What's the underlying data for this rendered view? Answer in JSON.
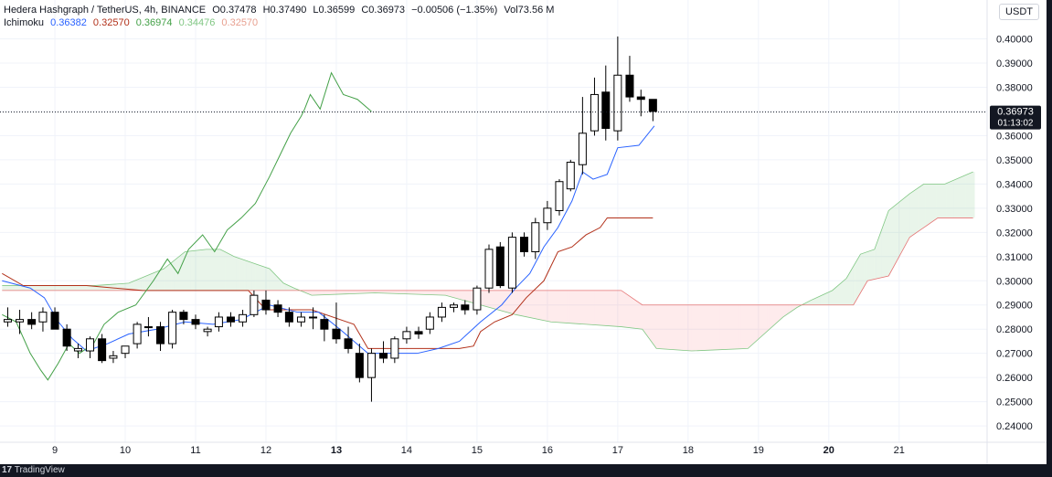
{
  "header": {
    "title": "Hedera Hashgraph / TetherUS, 4h, BINANCE",
    "open_label": "O",
    "open": "0.37478",
    "high_label": "H",
    "high": "0.37490",
    "low_label": "L",
    "low": "0.36599",
    "close_label": "C",
    "close": "0.36973",
    "change": "−0.00506 (−1.35%)",
    "volume_label": "Vol",
    "volume": "73.56 M"
  },
  "indicator": {
    "name": "Ichimoku",
    "values": [
      "0.36382",
      "0.32570",
      "0.36974",
      "0.34476",
      "0.32570"
    ]
  },
  "unit": "USDT",
  "price_tag": {
    "price": "0.36973",
    "countdown": "01:13:02"
  },
  "footer": {
    "brand": "TradingView",
    "logo": "17"
  },
  "colors": {
    "conversion": "#2962ff",
    "base": "#b2311a",
    "lagging": "#43a047",
    "lead_a": "#81c784",
    "lead_b": "#e57373",
    "cloud_bull": "rgba(76,175,80,0.12)",
    "cloud_bear": "rgba(242,54,69,0.10)",
    "candle_up": "#ffffff",
    "candle_down": "#000000"
  },
  "chart_data": {
    "type": "candlestick",
    "y_ticks": [
      "0.40000",
      "0.39000",
      "0.38000",
      "0.37000",
      "0.36000",
      "0.35000",
      "0.34000",
      "0.33000",
      "0.32000",
      "0.31000",
      "0.30000",
      "0.29000",
      "0.28000",
      "0.27000",
      "0.26000",
      "0.25000",
      "0.24000"
    ],
    "x_ticks": [
      {
        "label": "9",
        "x": 8.45,
        "bold": false
      },
      {
        "label": "10",
        "x": 9.45,
        "bold": false
      },
      {
        "label": "11",
        "x": 10.45,
        "bold": false
      },
      {
        "label": "12",
        "x": 11.45,
        "bold": false
      },
      {
        "label": "13",
        "x": 12.45,
        "bold": true
      },
      {
        "label": "14",
        "x": 13.45,
        "bold": false
      },
      {
        "label": "15",
        "x": 14.45,
        "bold": false
      },
      {
        "label": "16",
        "x": 15.45,
        "bold": false
      },
      {
        "label": "17",
        "x": 16.45,
        "bold": false
      },
      {
        "label": "18",
        "x": 17.45,
        "bold": false
      },
      {
        "label": "19",
        "x": 18.45,
        "bold": false
      },
      {
        "label": "20",
        "x": 19.45,
        "bold": true
      },
      {
        "label": "21",
        "x": 20.45,
        "bold": false
      }
    ],
    "ylim": [
      0.2355,
      0.4055
    ],
    "xlim": [
      7.67,
      21.7
    ],
    "candles": [
      {
        "x": 7.78,
        "o": 0.283,
        "h": 0.289,
        "l": 0.281,
        "c": 0.284
      },
      {
        "x": 7.95,
        "o": 0.283,
        "h": 0.288,
        "l": 0.278,
        "c": 0.284
      },
      {
        "x": 8.12,
        "o": 0.284,
        "h": 0.287,
        "l": 0.28,
        "c": 0.282
      },
      {
        "x": 8.28,
        "o": 0.283,
        "h": 0.289,
        "l": 0.279,
        "c": 0.287
      },
      {
        "x": 8.45,
        "o": 0.287,
        "h": 0.289,
        "l": 0.28,
        "c": 0.28
      },
      {
        "x": 8.62,
        "o": 0.28,
        "h": 0.282,
        "l": 0.271,
        "c": 0.273
      },
      {
        "x": 8.78,
        "o": 0.271,
        "h": 0.274,
        "l": 0.268,
        "c": 0.272
      },
      {
        "x": 8.95,
        "o": 0.271,
        "h": 0.277,
        "l": 0.268,
        "c": 0.276
      },
      {
        "x": 9.12,
        "o": 0.276,
        "h": 0.278,
        "l": 0.266,
        "c": 0.267
      },
      {
        "x": 9.28,
        "o": 0.268,
        "h": 0.271,
        "l": 0.266,
        "c": 0.269
      },
      {
        "x": 9.45,
        "o": 0.27,
        "h": 0.273,
        "l": 0.268,
        "c": 0.273
      },
      {
        "x": 9.62,
        "o": 0.274,
        "h": 0.283,
        "l": 0.272,
        "c": 0.282
      },
      {
        "x": 9.78,
        "o": 0.281,
        "h": 0.285,
        "l": 0.277,
        "c": 0.281
      },
      {
        "x": 9.95,
        "o": 0.281,
        "h": 0.283,
        "l": 0.271,
        "c": 0.274
      },
      {
        "x": 10.12,
        "o": 0.274,
        "h": 0.288,
        "l": 0.272,
        "c": 0.287
      },
      {
        "x": 10.28,
        "o": 0.287,
        "h": 0.288,
        "l": 0.282,
        "c": 0.284
      },
      {
        "x": 10.45,
        "o": 0.284,
        "h": 0.286,
        "l": 0.28,
        "c": 0.282
      },
      {
        "x": 10.62,
        "o": 0.279,
        "h": 0.281,
        "l": 0.277,
        "c": 0.28
      },
      {
        "x": 10.78,
        "o": 0.281,
        "h": 0.287,
        "l": 0.279,
        "c": 0.285
      },
      {
        "x": 10.95,
        "o": 0.285,
        "h": 0.287,
        "l": 0.281,
        "c": 0.283
      },
      {
        "x": 11.12,
        "o": 0.283,
        "h": 0.288,
        "l": 0.281,
        "c": 0.286
      },
      {
        "x": 11.28,
        "o": 0.286,
        "h": 0.296,
        "l": 0.285,
        "c": 0.294
      },
      {
        "x": 11.45,
        "o": 0.292,
        "h": 0.296,
        "l": 0.286,
        "c": 0.288
      },
      {
        "x": 11.62,
        "o": 0.29,
        "h": 0.292,
        "l": 0.285,
        "c": 0.287
      },
      {
        "x": 11.78,
        "o": 0.287,
        "h": 0.289,
        "l": 0.281,
        "c": 0.283
      },
      {
        "x": 11.95,
        "o": 0.283,
        "h": 0.287,
        "l": 0.281,
        "c": 0.285
      },
      {
        "x": 12.12,
        "o": 0.285,
        "h": 0.289,
        "l": 0.28,
        "c": 0.285
      },
      {
        "x": 12.28,
        "o": 0.284,
        "h": 0.286,
        "l": 0.275,
        "c": 0.28
      },
      {
        "x": 12.45,
        "o": 0.28,
        "h": 0.291,
        "l": 0.274,
        "c": 0.276
      },
      {
        "x": 12.62,
        "o": 0.276,
        "h": 0.281,
        "l": 0.27,
        "c": 0.272
      },
      {
        "x": 12.78,
        "o": 0.27,
        "h": 0.274,
        "l": 0.258,
        "c": 0.26
      },
      {
        "x": 12.95,
        "o": 0.26,
        "h": 0.272,
        "l": 0.25,
        "c": 0.27
      },
      {
        "x": 13.12,
        "o": 0.27,
        "h": 0.275,
        "l": 0.266,
        "c": 0.268
      },
      {
        "x": 13.28,
        "o": 0.268,
        "h": 0.277,
        "l": 0.266,
        "c": 0.276
      },
      {
        "x": 13.45,
        "o": 0.276,
        "h": 0.281,
        "l": 0.274,
        "c": 0.279
      },
      {
        "x": 13.62,
        "o": 0.279,
        "h": 0.281,
        "l": 0.276,
        "c": 0.278
      },
      {
        "x": 13.78,
        "o": 0.28,
        "h": 0.287,
        "l": 0.278,
        "c": 0.285
      },
      {
        "x": 13.95,
        "o": 0.285,
        "h": 0.291,
        "l": 0.283,
        "c": 0.289
      },
      {
        "x": 14.12,
        "o": 0.289,
        "h": 0.291,
        "l": 0.287,
        "c": 0.29
      },
      {
        "x": 14.28,
        "o": 0.29,
        "h": 0.292,
        "l": 0.286,
        "c": 0.288
      },
      {
        "x": 14.45,
        "o": 0.288,
        "h": 0.298,
        "l": 0.286,
        "c": 0.297
      },
      {
        "x": 14.62,
        "o": 0.297,
        "h": 0.315,
        "l": 0.295,
        "c": 0.313
      },
      {
        "x": 14.78,
        "o": 0.314,
        "h": 0.316,
        "l": 0.297,
        "c": 0.298
      },
      {
        "x": 14.95,
        "o": 0.297,
        "h": 0.32,
        "l": 0.295,
        "c": 0.318
      },
      {
        "x": 15.12,
        "o": 0.318,
        "h": 0.32,
        "l": 0.31,
        "c": 0.312
      },
      {
        "x": 15.28,
        "o": 0.312,
        "h": 0.326,
        "l": 0.309,
        "c": 0.324
      },
      {
        "x": 15.45,
        "o": 0.324,
        "h": 0.333,
        "l": 0.321,
        "c": 0.33
      },
      {
        "x": 15.62,
        "o": 0.329,
        "h": 0.342,
        "l": 0.327,
        "c": 0.341
      },
      {
        "x": 15.78,
        "o": 0.338,
        "h": 0.35,
        "l": 0.337,
        "c": 0.349
      },
      {
        "x": 15.95,
        "o": 0.348,
        "h": 0.376,
        "l": 0.344,
        "c": 0.361
      },
      {
        "x": 16.12,
        "o": 0.362,
        "h": 0.384,
        "l": 0.36,
        "c": 0.377
      },
      {
        "x": 16.28,
        "o": 0.378,
        "h": 0.389,
        "l": 0.358,
        "c": 0.363
      },
      {
        "x": 16.45,
        "o": 0.362,
        "h": 0.401,
        "l": 0.358,
        "c": 0.385
      },
      {
        "x": 16.62,
        "o": 0.385,
        "h": 0.393,
        "l": 0.374,
        "c": 0.376
      },
      {
        "x": 16.78,
        "o": 0.376,
        "h": 0.379,
        "l": 0.368,
        "c": 0.375
      },
      {
        "x": 16.95,
        "o": 0.375,
        "h": 0.375,
        "l": 0.366,
        "c": 0.37
      }
    ],
    "conversion_line": [
      [
        7.7,
        0.3
      ],
      [
        8.1,
        0.297
      ],
      [
        8.3,
        0.293
      ],
      [
        8.5,
        0.283
      ],
      [
        8.7,
        0.276
      ],
      [
        8.9,
        0.271
      ],
      [
        9.2,
        0.274
      ],
      [
        9.5,
        0.278
      ],
      [
        9.9,
        0.28
      ],
      [
        10.3,
        0.283
      ],
      [
        10.7,
        0.282
      ],
      [
        11.1,
        0.284
      ],
      [
        11.5,
        0.29
      ],
      [
        11.9,
        0.287
      ],
      [
        12.2,
        0.287
      ],
      [
        12.5,
        0.28
      ],
      [
        12.9,
        0.27
      ],
      [
        13.3,
        0.27
      ],
      [
        13.6,
        0.27
      ],
      [
        13.9,
        0.272
      ],
      [
        14.2,
        0.275
      ],
      [
        14.5,
        0.283
      ],
      [
        14.8,
        0.29
      ],
      [
        15.0,
        0.297
      ],
      [
        15.2,
        0.303
      ],
      [
        15.4,
        0.314
      ],
      [
        15.6,
        0.322
      ],
      [
        15.8,
        0.333
      ],
      [
        15.95,
        0.345
      ],
      [
        16.1,
        0.342
      ],
      [
        16.3,
        0.344
      ],
      [
        16.45,
        0.355
      ],
      [
        16.75,
        0.356
      ],
      [
        16.97,
        0.364
      ]
    ],
    "base_line": [
      [
        7.7,
        0.303
      ],
      [
        8.0,
        0.298
      ],
      [
        8.9,
        0.298
      ],
      [
        9.3,
        0.297
      ],
      [
        9.7,
        0.296
      ],
      [
        10.5,
        0.296
      ],
      [
        11.2,
        0.296
      ],
      [
        11.45,
        0.288
      ],
      [
        12.1,
        0.288
      ],
      [
        12.7,
        0.282
      ],
      [
        12.9,
        0.272
      ],
      [
        13.3,
        0.272
      ],
      [
        14.2,
        0.272
      ],
      [
        14.4,
        0.273
      ],
      [
        14.5,
        0.279
      ],
      [
        14.7,
        0.283
      ],
      [
        14.95,
        0.286
      ],
      [
        15.15,
        0.293
      ],
      [
        15.4,
        0.3
      ],
      [
        15.6,
        0.312
      ],
      [
        15.8,
        0.314
      ],
      [
        16.0,
        0.319
      ],
      [
        16.2,
        0.322
      ],
      [
        16.3,
        0.326
      ],
      [
        16.95,
        0.326
      ]
    ],
    "lagging_span": [
      [
        7.7,
        0.286
      ],
      [
        7.9,
        0.283
      ],
      [
        8.1,
        0.27
      ],
      [
        8.25,
        0.263
      ],
      [
        8.35,
        0.259
      ],
      [
        8.5,
        0.266
      ],
      [
        8.65,
        0.274
      ],
      [
        8.8,
        0.27
      ],
      [
        9.0,
        0.274
      ],
      [
        9.15,
        0.282
      ],
      [
        9.35,
        0.287
      ],
      [
        9.6,
        0.29
      ],
      [
        9.85,
        0.3
      ],
      [
        10.05,
        0.309
      ],
      [
        10.2,
        0.303
      ],
      [
        10.35,
        0.313
      ],
      [
        10.55,
        0.319
      ],
      [
        10.72,
        0.312
      ],
      [
        10.9,
        0.321
      ],
      [
        11.1,
        0.326
      ],
      [
        11.3,
        0.332
      ],
      [
        11.5,
        0.343
      ],
      [
        11.65,
        0.352
      ],
      [
        11.8,
        0.361
      ],
      [
        11.95,
        0.368
      ],
      [
        12.0,
        0.371
      ],
      [
        12.08,
        0.377
      ],
      [
        12.22,
        0.371
      ],
      [
        12.38,
        0.386
      ],
      [
        12.55,
        0.377
      ],
      [
        12.75,
        0.375
      ],
      [
        12.95,
        0.37
      ]
    ],
    "lead_a": [
      [
        7.7,
        0.298
      ],
      [
        8.0,
        0.298
      ],
      [
        8.5,
        0.298
      ],
      [
        9.0,
        0.298
      ],
      [
        9.5,
        0.299
      ],
      [
        10.0,
        0.305
      ],
      [
        10.3,
        0.312
      ],
      [
        10.6,
        0.313
      ],
      [
        10.8,
        0.313
      ],
      [
        11.0,
        0.31
      ],
      [
        11.3,
        0.307
      ],
      [
        11.5,
        0.305
      ],
      [
        11.7,
        0.299
      ],
      [
        11.85,
        0.297
      ],
      [
        12.1,
        0.294
      ],
      [
        13.0,
        0.295
      ],
      [
        14.0,
        0.294
      ],
      [
        15.0,
        0.286
      ],
      [
        15.5,
        0.283
      ],
      [
        16.0,
        0.282
      ],
      [
        16.5,
        0.281
      ],
      [
        16.8,
        0.28
      ],
      [
        17.0,
        0.272
      ],
      [
        17.5,
        0.271
      ],
      [
        18.3,
        0.272
      ],
      [
        18.8,
        0.285
      ],
      [
        19.0,
        0.289
      ],
      [
        19.2,
        0.292
      ],
      [
        19.5,
        0.296
      ],
      [
        19.7,
        0.301
      ],
      [
        19.9,
        0.311
      ],
      [
        20.1,
        0.313
      ],
      [
        20.3,
        0.329
      ],
      [
        20.6,
        0.336
      ],
      [
        20.8,
        0.34
      ],
      [
        21.1,
        0.34
      ],
      [
        21.5,
        0.345
      ]
    ],
    "lead_b": [
      [
        7.7,
        0.296
      ],
      [
        8.0,
        0.296
      ],
      [
        10.5,
        0.296
      ],
      [
        11.0,
        0.296
      ],
      [
        11.5,
        0.296
      ],
      [
        12.0,
        0.296
      ],
      [
        12.5,
        0.296
      ],
      [
        13.0,
        0.296
      ],
      [
        14.0,
        0.296
      ],
      [
        15.0,
        0.296
      ],
      [
        15.5,
        0.296
      ],
      [
        16.0,
        0.296
      ],
      [
        16.5,
        0.296
      ],
      [
        16.8,
        0.29
      ],
      [
        17.5,
        0.29
      ],
      [
        18.0,
        0.29
      ],
      [
        19.0,
        0.29
      ],
      [
        19.5,
        0.29
      ],
      [
        19.8,
        0.29
      ],
      [
        20.0,
        0.3
      ],
      [
        20.3,
        0.302
      ],
      [
        20.6,
        0.318
      ],
      [
        20.8,
        0.322
      ],
      [
        21.0,
        0.326
      ],
      [
        21.5,
        0.326
      ]
    ],
    "last_price": 0.36973
  }
}
